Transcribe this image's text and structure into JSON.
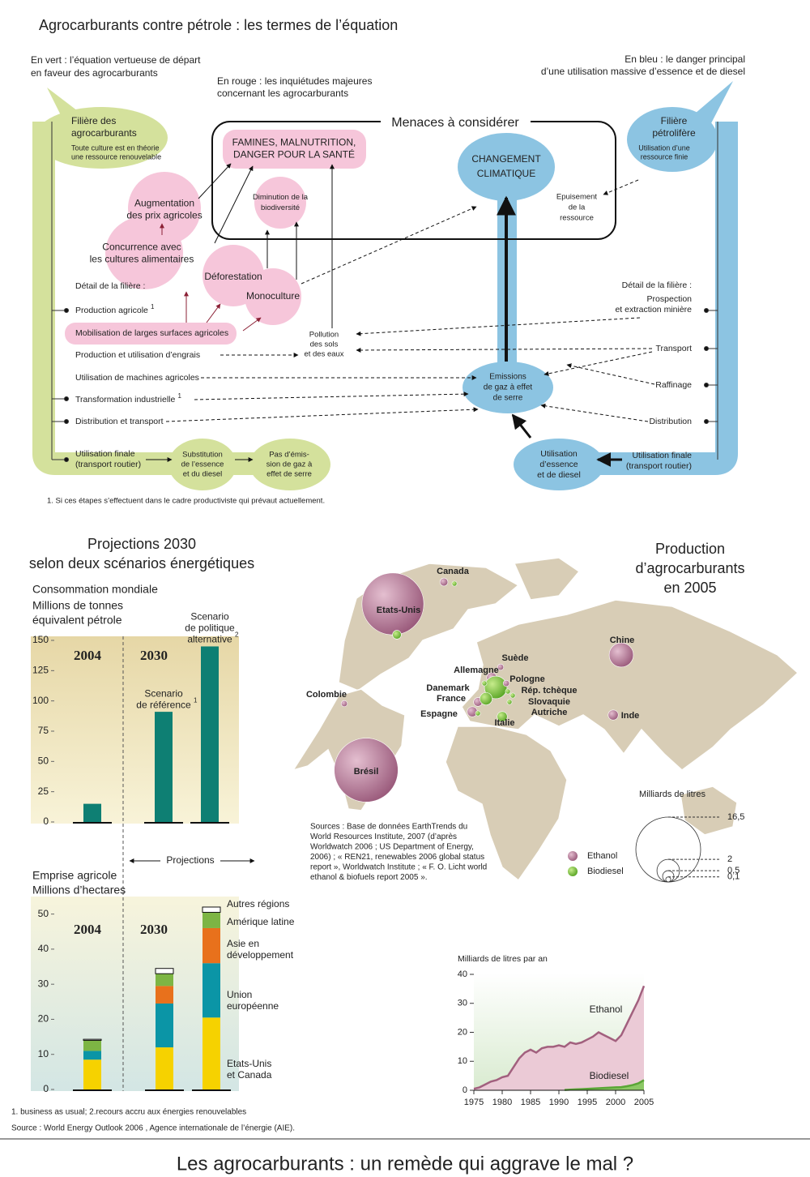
{
  "diagram": {
    "title": "Agrocarburants contre pétrole : les termes de l’équation",
    "legend_green": [
      "En vert : l’équation vertueuse de départ",
      "en faveur des agrocarburants"
    ],
    "legend_red": [
      "En rouge : les inquiétudes majeures",
      "concernant les agrocarburants"
    ],
    "legend_blue": [
      "En bleu : le danger principal",
      "d’une utilisation massive d’essence et de diesel"
    ],
    "threats_title": "Menaces à considérer",
    "bio_chain": {
      "title": [
        "Filière des",
        "agrocarburants"
      ],
      "subtitle": [
        "Toute culture est en théorie",
        "une ressource renouvelable"
      ],
      "detail": "Détail de la filière :",
      "steps": [
        {
          "label": "Production agricole",
          "note": "1"
        },
        {
          "label": "Mobilisation de larges surfaces agricoles"
        },
        {
          "label": "Production et utilisation d’engrais"
        },
        {
          "label": "Utilisation de machines agricoles"
        },
        {
          "label": "Transformation industrielle",
          "note": "1"
        },
        {
          "label": "Distribution et transport"
        },
        {
          "label": [
            "Utilisation finale",
            "(transport routier)"
          ]
        }
      ]
    },
    "oil_chain": {
      "title": [
        "Filière",
        "pétrolifère"
      ],
      "subtitle": [
        "Utilisation d’une",
        "ressource finie"
      ],
      "detail": "Détail de la filière :",
      "steps": [
        {
          "label": [
            "Prospection",
            "et extraction minière"
          ]
        },
        {
          "label": "Transport"
        },
        {
          "label": "Raffinage"
        },
        {
          "label": "Distribution"
        },
        {
          "label": [
            "Utilisation finale",
            "(transport routier)"
          ]
        }
      ]
    },
    "nodes": {
      "famines": [
        "FAMINES, MALNUTRITION,",
        "DANGER POUR LA SANTÉ"
      ],
      "climate": [
        "CHANGEMENT",
        "CLIMATIQUE"
      ],
      "biodiversity": [
        "Diminution de la",
        "biodiversité"
      ],
      "prices": [
        "Augmentation",
        "des prix agricoles"
      ],
      "competition": [
        "Concurrence avec",
        "les cultures alimentaires"
      ],
      "deforestation": "Déforestation",
      "monoculture": "Monoculture",
      "pollution": [
        "Pollution",
        "des sols",
        "et des eaux"
      ],
      "emissions": [
        "Emissions",
        "de gaz à effet",
        "de serre"
      ],
      "depletion": [
        "Epuisement",
        "de la",
        "ressource"
      ],
      "fuel_use": [
        "Utilisation",
        "d’essence",
        "et de diesel"
      ],
      "substitution": [
        "Substitution",
        "de l’essence",
        "et du diesel"
      ],
      "no_emission": [
        "Pas d’émis-",
        "sion de gaz à",
        "effet de serre"
      ]
    },
    "footnote": "1. Si ces étapes s’effectuent dans le cadre productiviste qui prévaut actuellement."
  },
  "projections": {
    "title": [
      "Projections 2030",
      "selon deux scénarios énergétiques"
    ],
    "range_label": "Projections",
    "footnote": "1. business as usual; 2.recours accru aux énergies renouvelables",
    "source": "Source : World Energy Outlook 2006 , Agence internationale de l’énergie (AIE)."
  },
  "map_sources": [
    "Sources : Base de données EarthTrends du",
    "World Resources Institute, 2007 (d’après",
    "Worldwatch 2006 ; US Department of Energy,",
    "2006) ; « REN21, renewables 2006 global status",
    "report », Worldwatch Institute ; « F. O. Licht world",
    "ethanol & biofuels report 2005 »."
  ],
  "bottom_title": "Les agrocarburants : un remède qui aggrave le mal ?",
  "chart_data": [
    {
      "type": "bar",
      "subtitle": "Consommation mondiale",
      "ylabel": [
        "Millions de tonnes",
        "équivalent pétrole"
      ],
      "group_labels": [
        "2004",
        "2030"
      ],
      "categories": [
        null,
        [
          "Scenario",
          "de référence"
        ],
        [
          "Scenario",
          "de politique",
          "alternative"
        ]
      ],
      "notes": [
        null,
        "1",
        "2"
      ],
      "values": [
        15,
        91,
        145
      ],
      "color": "#0e7f73",
      "ylim": [
        0,
        150
      ],
      "yticks": [
        0,
        25,
        50,
        75,
        100,
        125,
        150
      ]
    },
    {
      "type": "stacked_bar",
      "subtitle": "Emprise agricole",
      "ylabel": "Millions d’hectares",
      "group_labels": [
        "2004",
        "2030"
      ],
      "series": [
        {
          "name": "Etats-Unis et Canada",
          "color": "#f6d200",
          "values": [
            8.5,
            12,
            20.5
          ]
        },
        {
          "name": "Union européenne",
          "color": "#0b95a6",
          "values": [
            2.5,
            12.5,
            15.5
          ]
        },
        {
          "name": "Asie en développement",
          "color": "#e8711c",
          "values": [
            0,
            5,
            10
          ]
        },
        {
          "name": "Amérique latine",
          "color": "#7db544",
          "values": [
            3,
            3.5,
            4.5
          ]
        },
        {
          "name": "Autres régions",
          "color": "#ffffff",
          "values": [
            0.3,
            1.5,
            1.5
          ]
        }
      ],
      "ylim": [
        0,
        55
      ],
      "yticks": [
        0,
        10,
        20,
        30,
        40,
        50
      ]
    },
    {
      "type": "area",
      "title": "Milliards de litres par an",
      "x": [
        1975,
        1976,
        1977,
        1978,
        1979,
        1980,
        1981,
        1982,
        1983,
        1984,
        1985,
        1986,
        1987,
        1988,
        1989,
        1990,
        1991,
        1992,
        1993,
        1994,
        1995,
        1996,
        1997,
        1998,
        1999,
        2000,
        2001,
        2002,
        2003,
        2004,
        2005
      ],
      "series": [
        {
          "name": "Ethanol",
          "color": "#a2607e",
          "fill": "#ebcad6",
          "values": [
            0.5,
            1,
            2,
            3,
            3.5,
            4.5,
            5,
            8,
            11,
            13,
            14,
            13,
            14.5,
            15,
            15,
            15.5,
            15,
            16.5,
            16,
            16.5,
            17.5,
            18.5,
            20,
            19,
            18,
            17,
            19,
            23,
            27,
            31,
            36
          ]
        },
        {
          "name": "Biodiesel",
          "color": "#5aa637",
          "fill": "#8cc865",
          "values": [
            null,
            null,
            null,
            null,
            null,
            null,
            null,
            null,
            null,
            null,
            null,
            null,
            null,
            null,
            null,
            null,
            0.1,
            0.2,
            0.3,
            0.4,
            0.5,
            0.6,
            0.7,
            0.8,
            0.9,
            1,
            1.1,
            1.4,
            1.8,
            2.4,
            3.5
          ]
        }
      ],
      "xlim": [
        1975,
        2005
      ],
      "ylim": [
        0,
        40
      ],
      "xticks": [
        1975,
        1980,
        1985,
        1990,
        1995,
        2000,
        2005
      ],
      "yticks": [
        0,
        10,
        20,
        30,
        40
      ]
    },
    {
      "type": "bubble",
      "title": [
        "Production",
        "d’agrocarburants",
        "en 2005"
      ],
      "size_label": "Milliards de litres",
      "categories": [
        "Canada",
        "Etats-Unis",
        "Colombie",
        "Brésil",
        "Chine",
        "Inde",
        "Suède",
        "Allemagne",
        "Pologne",
        "Danemark",
        "France",
        "Espagne",
        "Italie",
        "Rép. tchèque",
        "Slovaquie",
        "Autriche"
      ],
      "series": [
        {
          "name": "Ethanol",
          "color": "#a8688a",
          "values": [
            0.25,
            15,
            0.15,
            16,
            2.3,
            0.4,
            0.15,
            0.4,
            0.15,
            null,
            0.3,
            0.4,
            null,
            null,
            null,
            null
          ]
        },
        {
          "name": "Biodiesel",
          "color": "#78bd36",
          "values": [
            0.1,
            0.3,
            null,
            null,
            null,
            null,
            null,
            2,
            null,
            0.1,
            0.6,
            0.1,
            0.4,
            0.1,
            0.1,
            0.1
          ]
        }
      ],
      "size_ticks": [
        {
          "value": 16.5,
          "label": "16,5"
        },
        2,
        {
          "value": 0.5,
          "label": "0,5"
        },
        {
          "value": 0.1,
          "label": "0,1"
        }
      ]
    }
  ]
}
